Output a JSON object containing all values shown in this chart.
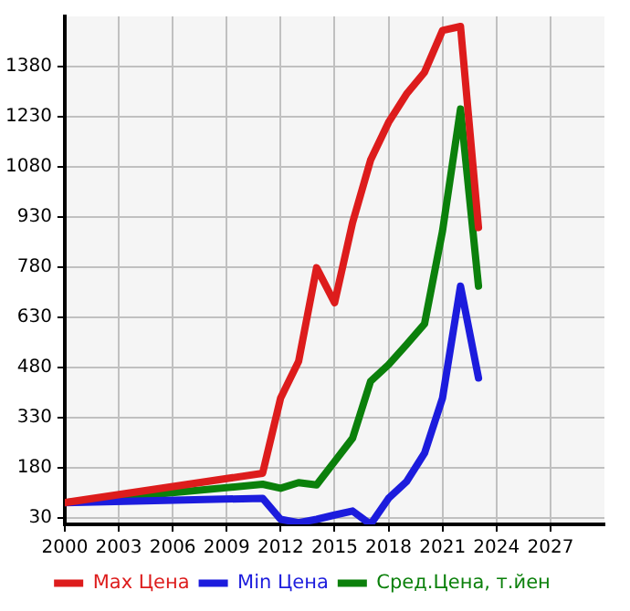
{
  "chart_data": {
    "type": "line",
    "x": [
      2000,
      2011,
      2012,
      2013,
      2014,
      2015,
      2016,
      2017,
      2018,
      2019,
      2020,
      2021,
      2022,
      2023
    ],
    "series": [
      {
        "name": "Max Цена",
        "color": "#dd1c1c",
        "values": [
          75,
          163,
          388,
          498,
          778,
          673,
          913,
          1100,
          1213,
          1298,
          1363,
          1488,
          1500,
          898
        ]
      },
      {
        "name": "Min Цена",
        "color": "#1c1cdd",
        "values": [
          75,
          88,
          25,
          15,
          25,
          38,
          50,
          10,
          88,
          138,
          223,
          388,
          723,
          448
        ]
      },
      {
        "name": "Сред.Цена, т.йен",
        "color": "#0b800b",
        "values": [
          75,
          130,
          118,
          135,
          128,
          198,
          268,
          438,
          488,
          548,
          610,
          888,
          1253,
          723
        ]
      }
    ],
    "xlim": [
      2000,
      2030
    ],
    "xticks": [
      2000,
      2003,
      2006,
      2009,
      2012,
      2015,
      2018,
      2021,
      2024,
      2027
    ],
    "ylim": [
      10,
      1530
    ],
    "yticks": [
      30,
      180,
      330,
      480,
      630,
      780,
      930,
      1080,
      1230,
      1380
    ],
    "grid": true,
    "legend": "bottom",
    "marker": "none",
    "line_style": "solid"
  }
}
